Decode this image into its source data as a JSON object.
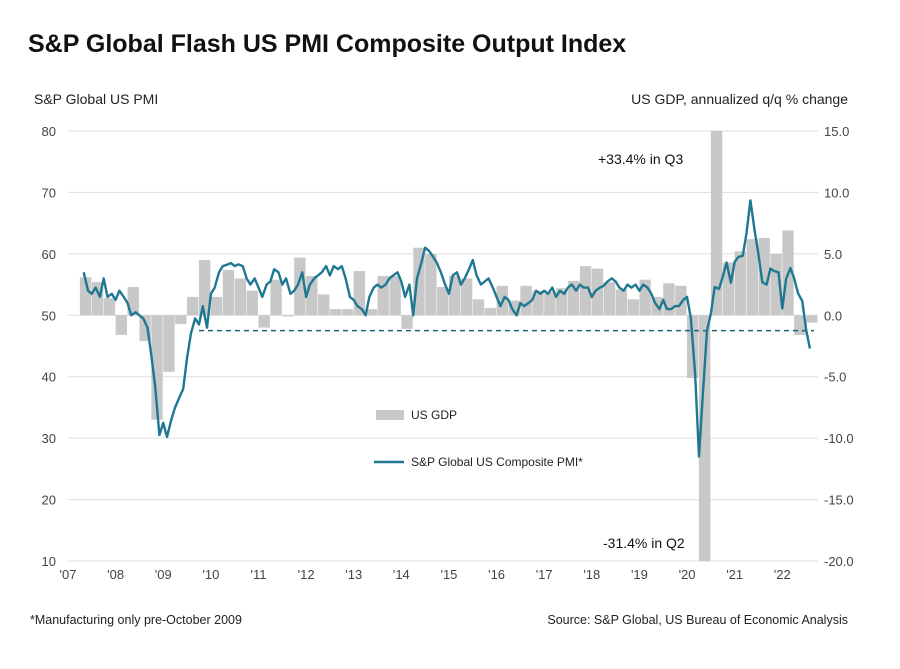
{
  "chart_data": {
    "type": "bar+line",
    "title": "S&P Global Flash US PMI Composite Output Index",
    "left_axis_label": "S&P Global US PMI",
    "right_axis_label": "US GDP, annualized q/q % change",
    "left_ylim": [
      10,
      80
    ],
    "left_ticks": [
      "80",
      "70",
      "60",
      "50",
      "40",
      "30",
      "20",
      "10"
    ],
    "right_ylim": [
      -20,
      15
    ],
    "right_ticks": [
      "15.0",
      "10.0",
      "5.0",
      "0.0",
      "-5.0",
      "-10.0",
      "-15.0",
      "-20.0"
    ],
    "x_ticks": [
      "'07",
      "'08",
      "'09",
      "'10",
      "'11",
      "'12",
      "'13",
      "'14",
      "'15",
      "'16",
      "'17",
      "'18",
      "'19",
      "'20",
      "'21",
      "'22"
    ],
    "x_start_year": 2007,
    "x_end_year": 2022.75,
    "grid": "horizontal",
    "legend": [
      {
        "label": "US GDP",
        "kind": "bar",
        "color": "#c8c8c8"
      },
      {
        "label": "S&P Global US Composite PMI*",
        "kind": "line",
        "color": "#1f7891"
      }
    ],
    "annotations": [
      "+33.4% in Q3",
      "-31.4% in Q2"
    ],
    "reference_line_value": 47.5,
    "gdp_quarters": [
      [
        2007.25,
        3.1
      ],
      [
        2007.5,
        2.7
      ],
      [
        2007.75,
        1.4
      ],
      [
        2008.0,
        -1.6
      ],
      [
        2008.25,
        2.3
      ],
      [
        2008.5,
        -2.1
      ],
      [
        2008.75,
        -8.5
      ],
      [
        2009.0,
        -4.6
      ],
      [
        2009.25,
        -0.7
      ],
      [
        2009.5,
        1.5
      ],
      [
        2009.75,
        4.5
      ],
      [
        2010.0,
        1.5
      ],
      [
        2010.25,
        3.7
      ],
      [
        2010.5,
        3.0
      ],
      [
        2010.75,
        2.0
      ],
      [
        2011.0,
        -1.0
      ],
      [
        2011.25,
        2.9
      ],
      [
        2011.5,
        -0.1
      ],
      [
        2011.75,
        4.7
      ],
      [
        2012.0,
        3.2
      ],
      [
        2012.25,
        1.7
      ],
      [
        2012.5,
        0.5
      ],
      [
        2012.75,
        0.5
      ],
      [
        2013.0,
        3.6
      ],
      [
        2013.25,
        0.5
      ],
      [
        2013.5,
        3.2
      ],
      [
        2013.75,
        3.2
      ],
      [
        2014.0,
        -1.1
      ],
      [
        2014.25,
        5.5
      ],
      [
        2014.5,
        5.0
      ],
      [
        2014.75,
        2.3
      ],
      [
        2015.0,
        3.2
      ],
      [
        2015.25,
        3.0
      ],
      [
        2015.5,
        1.3
      ],
      [
        2015.75,
        0.6
      ],
      [
        2016.0,
        2.4
      ],
      [
        2016.25,
        1.2
      ],
      [
        2016.5,
        2.4
      ],
      [
        2016.75,
        2.0
      ],
      [
        2017.0,
        1.9
      ],
      [
        2017.25,
        2.2
      ],
      [
        2017.5,
        2.8
      ],
      [
        2017.75,
        4.0
      ],
      [
        2018.0,
        3.8
      ],
      [
        2018.25,
        2.7
      ],
      [
        2018.5,
        2.1
      ],
      [
        2018.75,
        1.3
      ],
      [
        2019.0,
        2.9
      ],
      [
        2019.25,
        1.5
      ],
      [
        2019.5,
        2.6
      ],
      [
        2019.75,
        2.4
      ],
      [
        2020.0,
        -5.1
      ],
      [
        2020.25,
        -31.4
      ],
      [
        2020.5,
        33.4
      ],
      [
        2020.75,
        4.3
      ],
      [
        2021.0,
        5.2
      ],
      [
        2021.25,
        6.2
      ],
      [
        2021.5,
        6.3
      ],
      [
        2021.75,
        5.0
      ],
      [
        2022.0,
        6.9
      ],
      [
        2022.25,
        -1.6
      ],
      [
        2022.5,
        -0.6
      ]
    ],
    "pmi_monthly": [
      [
        2007.33,
        57
      ],
      [
        2007.42,
        54
      ],
      [
        2007.5,
        53.5
      ],
      [
        2007.58,
        54.5
      ],
      [
        2007.67,
        53
      ],
      [
        2007.75,
        56
      ],
      [
        2007.83,
        53
      ],
      [
        2007.92,
        53.5
      ],
      [
        2008.0,
        52.5
      ],
      [
        2008.08,
        54
      ],
      [
        2008.17,
        53
      ],
      [
        2008.25,
        52
      ],
      [
        2008.33,
        50
      ],
      [
        2008.42,
        50.5
      ],
      [
        2008.5,
        50
      ],
      [
        2008.58,
        49.5
      ],
      [
        2008.67,
        48
      ],
      [
        2008.75,
        43.5
      ],
      [
        2008.83,
        38.5
      ],
      [
        2008.92,
        30.5
      ],
      [
        2009.0,
        32.5
      ],
      [
        2009.08,
        30.2
      ],
      [
        2009.17,
        33
      ],
      [
        2009.25,
        35
      ],
      [
        2009.33,
        36.5
      ],
      [
        2009.42,
        38
      ],
      [
        2009.5,
        43
      ],
      [
        2009.58,
        47
      ],
      [
        2009.67,
        49.5
      ],
      [
        2009.75,
        48.5
      ],
      [
        2009.83,
        51.5
      ],
      [
        2009.92,
        48
      ],
      [
        2010.0,
        53.5
      ],
      [
        2010.08,
        54.5
      ],
      [
        2010.17,
        57
      ],
      [
        2010.25,
        58
      ],
      [
        2010.33,
        58.2
      ],
      [
        2010.42,
        58.5
      ],
      [
        2010.5,
        58
      ],
      [
        2010.58,
        58.3
      ],
      [
        2010.67,
        58
      ],
      [
        2010.75,
        56
      ],
      [
        2010.83,
        55
      ],
      [
        2010.92,
        56
      ],
      [
        2011.0,
        54.5
      ],
      [
        2011.08,
        53
      ],
      [
        2011.17,
        55
      ],
      [
        2011.25,
        55.5
      ],
      [
        2011.33,
        57.5
      ],
      [
        2011.42,
        57
      ],
      [
        2011.5,
        55
      ],
      [
        2011.58,
        56
      ],
      [
        2011.67,
        53.5
      ],
      [
        2011.75,
        54
      ],
      [
        2011.83,
        55
      ],
      [
        2011.92,
        57
      ],
      [
        2012.0,
        53
      ],
      [
        2012.08,
        55
      ],
      [
        2012.17,
        56
      ],
      [
        2012.25,
        56.5
      ],
      [
        2012.33,
        57
      ],
      [
        2012.42,
        58
      ],
      [
        2012.5,
        56.5
      ],
      [
        2012.58,
        58
      ],
      [
        2012.67,
        57.5
      ],
      [
        2012.75,
        58
      ],
      [
        2012.83,
        56
      ],
      [
        2012.92,
        53
      ],
      [
        2013.0,
        52.5
      ],
      [
        2013.08,
        51.5
      ],
      [
        2013.17,
        51
      ],
      [
        2013.25,
        50
      ],
      [
        2013.33,
        53
      ],
      [
        2013.42,
        54.5
      ],
      [
        2013.5,
        55
      ],
      [
        2013.58,
        54.5
      ],
      [
        2013.67,
        55
      ],
      [
        2013.75,
        56
      ],
      [
        2013.83,
        56.5
      ],
      [
        2013.92,
        57
      ],
      [
        2014.0,
        55.5
      ],
      [
        2014.08,
        53
      ],
      [
        2014.17,
        55
      ],
      [
        2014.25,
        50
      ],
      [
        2014.33,
        56
      ],
      [
        2014.42,
        58.5
      ],
      [
        2014.5,
        61
      ],
      [
        2014.58,
        60.5
      ],
      [
        2014.67,
        59.5
      ],
      [
        2014.75,
        58.5
      ],
      [
        2014.83,
        57
      ],
      [
        2014.92,
        55
      ],
      [
        2015.0,
        53.5
      ],
      [
        2015.08,
        56.5
      ],
      [
        2015.17,
        57
      ],
      [
        2015.25,
        55
      ],
      [
        2015.33,
        56
      ],
      [
        2015.42,
        57.5
      ],
      [
        2015.5,
        59
      ],
      [
        2015.58,
        56.5
      ],
      [
        2015.67,
        55
      ],
      [
        2015.75,
        55.5
      ],
      [
        2015.83,
        56
      ],
      [
        2015.92,
        54.5
      ],
      [
        2016.0,
        53
      ],
      [
        2016.08,
        51.5
      ],
      [
        2016.17,
        53
      ],
      [
        2016.25,
        52.5
      ],
      [
        2016.33,
        51
      ],
      [
        2016.42,
        50
      ],
      [
        2016.5,
        52
      ],
      [
        2016.58,
        51.5
      ],
      [
        2016.67,
        52
      ],
      [
        2016.75,
        52.5
      ],
      [
        2016.83,
        54
      ],
      [
        2016.92,
        53.5
      ],
      [
        2017.0,
        54
      ],
      [
        2017.08,
        53.5
      ],
      [
        2017.17,
        54.5
      ],
      [
        2017.25,
        53
      ],
      [
        2017.33,
        54
      ],
      [
        2017.42,
        53.5
      ],
      [
        2017.5,
        54.5
      ],
      [
        2017.58,
        55
      ],
      [
        2017.67,
        54
      ],
      [
        2017.75,
        55
      ],
      [
        2017.83,
        54.5
      ],
      [
        2017.92,
        54.5
      ],
      [
        2018.0,
        53
      ],
      [
        2018.08,
        54
      ],
      [
        2018.17,
        54.5
      ],
      [
        2018.25,
        54.8
      ],
      [
        2018.33,
        55.5
      ],
      [
        2018.42,
        56
      ],
      [
        2018.5,
        55.5
      ],
      [
        2018.58,
        54.5
      ],
      [
        2018.67,
        54
      ],
      [
        2018.75,
        55
      ],
      [
        2018.83,
        54.5
      ],
      [
        2018.92,
        55
      ],
      [
        2019.0,
        54
      ],
      [
        2019.08,
        55
      ],
      [
        2019.17,
        54.5
      ],
      [
        2019.25,
        53.5
      ],
      [
        2019.33,
        52
      ],
      [
        2019.42,
        51
      ],
      [
        2019.5,
        52.5
      ],
      [
        2019.58,
        51
      ],
      [
        2019.67,
        51
      ],
      [
        2019.75,
        51.5
      ],
      [
        2019.83,
        51.5
      ],
      [
        2019.92,
        52.5
      ],
      [
        2020.0,
        53
      ],
      [
        2020.08,
        49.5
      ],
      [
        2020.17,
        40.5
      ],
      [
        2020.25,
        27
      ],
      [
        2020.33,
        37
      ],
      [
        2020.42,
        47.5
      ],
      [
        2020.5,
        50.3
      ],
      [
        2020.58,
        54.6
      ],
      [
        2020.67,
        54.3
      ],
      [
        2020.75,
        56.3
      ],
      [
        2020.83,
        58.6
      ],
      [
        2020.92,
        55.3
      ],
      [
        2021.0,
        58.7
      ],
      [
        2021.08,
        59.5
      ],
      [
        2021.17,
        59.7
      ],
      [
        2021.25,
        63.5
      ],
      [
        2021.33,
        68.7
      ],
      [
        2021.42,
        63.7
      ],
      [
        2021.5,
        59.9
      ],
      [
        2021.58,
        55.4
      ],
      [
        2021.67,
        55
      ],
      [
        2021.75,
        57.6
      ],
      [
        2021.83,
        57.2
      ],
      [
        2021.92,
        57
      ],
      [
        2022.0,
        51.1
      ],
      [
        2022.08,
        55.9
      ],
      [
        2022.17,
        57.7
      ],
      [
        2022.25,
        56
      ],
      [
        2022.33,
        53.6
      ],
      [
        2022.42,
        52.3
      ],
      [
        2022.5,
        47.7
      ],
      [
        2022.58,
        44.6
      ]
    ]
  },
  "footer": {
    "note": "*Manufacturing only pre-October 2009",
    "source": "Source: S&P Global,  US Bureau of Economic Analysis"
  }
}
